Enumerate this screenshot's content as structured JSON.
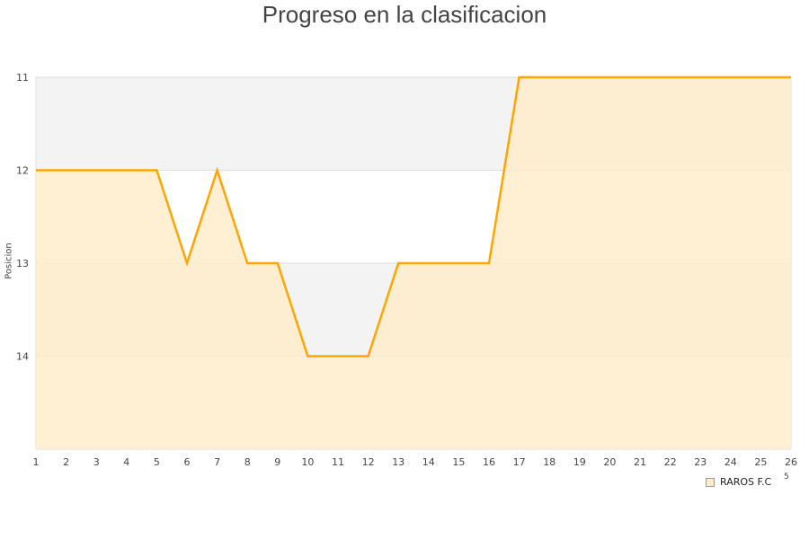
{
  "chart_data": {
    "type": "area",
    "title": "Progreso en la clasificacion",
    "xlabel": "",
    "ylabel": "Posicion",
    "x": [
      1,
      2,
      3,
      4,
      5,
      6,
      7,
      8,
      9,
      10,
      11,
      12,
      13,
      14,
      15,
      16,
      17,
      18,
      19,
      20,
      21,
      22,
      23,
      24,
      25,
      26
    ],
    "series": [
      {
        "name": "RAROS F.C",
        "values": [
          12,
          12,
          12,
          12,
          12,
          13,
          12,
          13,
          13,
          14,
          14,
          14,
          13,
          13,
          13,
          13,
          11,
          11,
          11,
          11,
          11,
          11,
          11,
          11,
          11,
          11
        ]
      }
    ],
    "ylim": [
      11,
      15
    ],
    "y_inverted": true,
    "yticks": [
      11,
      12,
      13,
      14
    ],
    "grid": true,
    "legend_placement": "bottom-right",
    "colors": {
      "line": "#ffa500",
      "fill": "#ffecc8",
      "band": "#f3f3f3"
    }
  },
  "legend_extra": "5"
}
